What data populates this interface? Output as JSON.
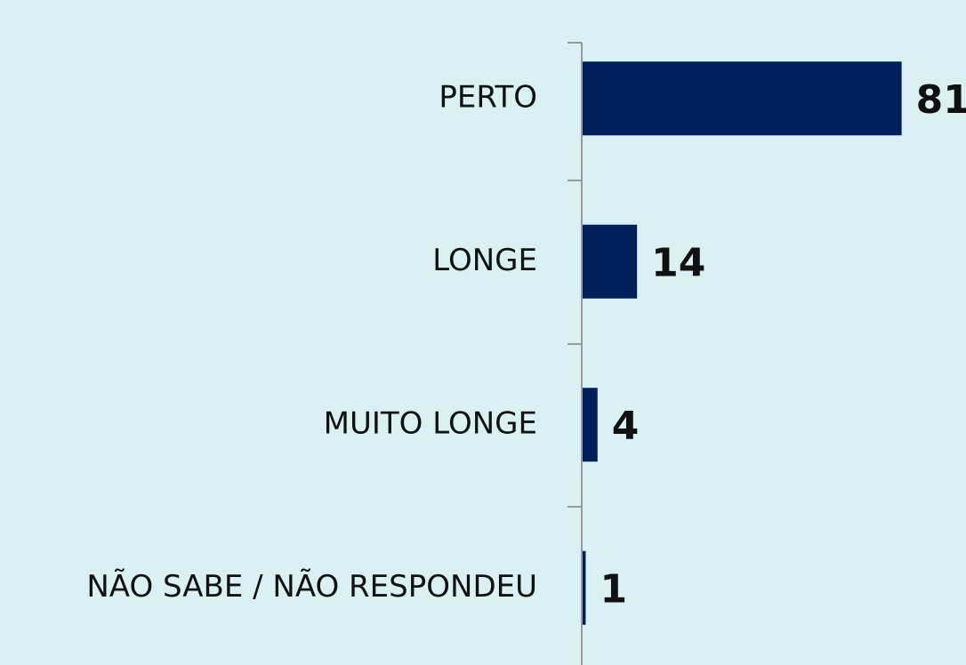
{
  "chart_data": {
    "type": "bar",
    "orientation": "horizontal",
    "categories": [
      "PERTO",
      "LONGE",
      "MUITO LONGE",
      "NÃO SABE / NÃO RESPONDEU"
    ],
    "values": [
      81,
      14,
      4,
      1
    ],
    "color": "#00205b",
    "xlim": [
      0,
      100
    ]
  }
}
